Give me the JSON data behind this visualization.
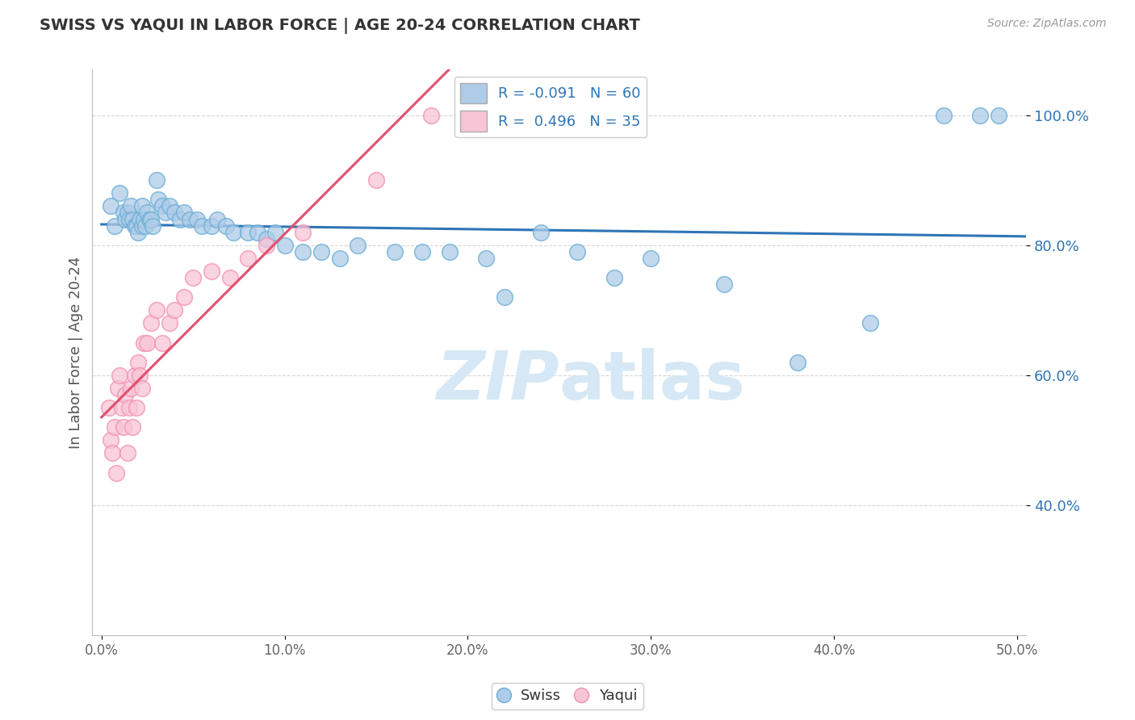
{
  "title": "SWISS VS YAQUI IN LABOR FORCE | AGE 20-24 CORRELATION CHART",
  "source_text": "Source: ZipAtlas.com",
  "ylabel": "In Labor Force | Age 20-24",
  "xlim": [
    -0.005,
    0.505
  ],
  "ylim": [
    0.2,
    1.07
  ],
  "xtick_labels": [
    "0.0%",
    "10.0%",
    "20.0%",
    "30.0%",
    "40.0%",
    "50.0%"
  ],
  "xtick_values": [
    0.0,
    0.1,
    0.2,
    0.3,
    0.4,
    0.5
  ],
  "ytick_labels": [
    "40.0%",
    "60.0%",
    "80.0%",
    "100.0%"
  ],
  "ytick_values": [
    0.4,
    0.6,
    0.8,
    1.0
  ],
  "swiss_R": -0.091,
  "swiss_N": 60,
  "yaqui_R": 0.496,
  "yaqui_N": 35,
  "swiss_color": "#aecce8",
  "swiss_edge_color": "#6baed6",
  "swiss_line_color": "#2e75b6",
  "yaqui_color": "#f7c5d5",
  "yaqui_edge_color": "#f48fb1",
  "yaqui_line_color": "#e05070",
  "legend_text_color": "#2e75b6",
  "watermark_color": "#d6e8f5",
  "background_color": "#ffffff",
  "grid_color": "#cccccc",
  "swiss_x": [
    0.005,
    0.007,
    0.01,
    0.012,
    0.013,
    0.014,
    0.015,
    0.016,
    0.017,
    0.018,
    0.019,
    0.02,
    0.021,
    0.022,
    0.022,
    0.023,
    0.024,
    0.025,
    0.026,
    0.027,
    0.028,
    0.03,
    0.031,
    0.033,
    0.035,
    0.037,
    0.04,
    0.043,
    0.045,
    0.048,
    0.052,
    0.055,
    0.06,
    0.063,
    0.068,
    0.072,
    0.08,
    0.085,
    0.09,
    0.095,
    0.1,
    0.11,
    0.12,
    0.13,
    0.14,
    0.16,
    0.175,
    0.19,
    0.21,
    0.22,
    0.24,
    0.26,
    0.28,
    0.3,
    0.34,
    0.38,
    0.42,
    0.46,
    0.48,
    0.49
  ],
  "swiss_y": [
    0.86,
    0.83,
    0.88,
    0.85,
    0.84,
    0.85,
    0.84,
    0.86,
    0.84,
    0.83,
    0.83,
    0.82,
    0.84,
    0.86,
    0.83,
    0.84,
    0.83,
    0.85,
    0.84,
    0.84,
    0.83,
    0.9,
    0.87,
    0.86,
    0.85,
    0.86,
    0.85,
    0.84,
    0.85,
    0.84,
    0.84,
    0.83,
    0.83,
    0.84,
    0.83,
    0.82,
    0.82,
    0.82,
    0.81,
    0.82,
    0.8,
    0.79,
    0.79,
    0.78,
    0.8,
    0.79,
    0.79,
    0.79,
    0.78,
    0.72,
    0.82,
    0.79,
    0.75,
    0.78,
    0.74,
    0.62,
    0.68,
    1.0,
    1.0,
    1.0
  ],
  "yaqui_x": [
    0.004,
    0.005,
    0.006,
    0.007,
    0.008,
    0.009,
    0.01,
    0.011,
    0.012,
    0.013,
    0.014,
    0.015,
    0.016,
    0.017,
    0.018,
    0.019,
    0.02,
    0.021,
    0.022,
    0.023,
    0.025,
    0.027,
    0.03,
    0.033,
    0.037,
    0.04,
    0.045,
    0.05,
    0.06,
    0.07,
    0.08,
    0.09,
    0.11,
    0.15,
    0.18
  ],
  "yaqui_y": [
    0.55,
    0.5,
    0.48,
    0.52,
    0.45,
    0.58,
    0.6,
    0.55,
    0.52,
    0.57,
    0.48,
    0.55,
    0.58,
    0.52,
    0.6,
    0.55,
    0.62,
    0.6,
    0.58,
    0.65,
    0.65,
    0.68,
    0.7,
    0.65,
    0.68,
    0.7,
    0.72,
    0.75,
    0.76,
    0.75,
    0.78,
    0.8,
    0.82,
    0.9,
    1.0
  ]
}
